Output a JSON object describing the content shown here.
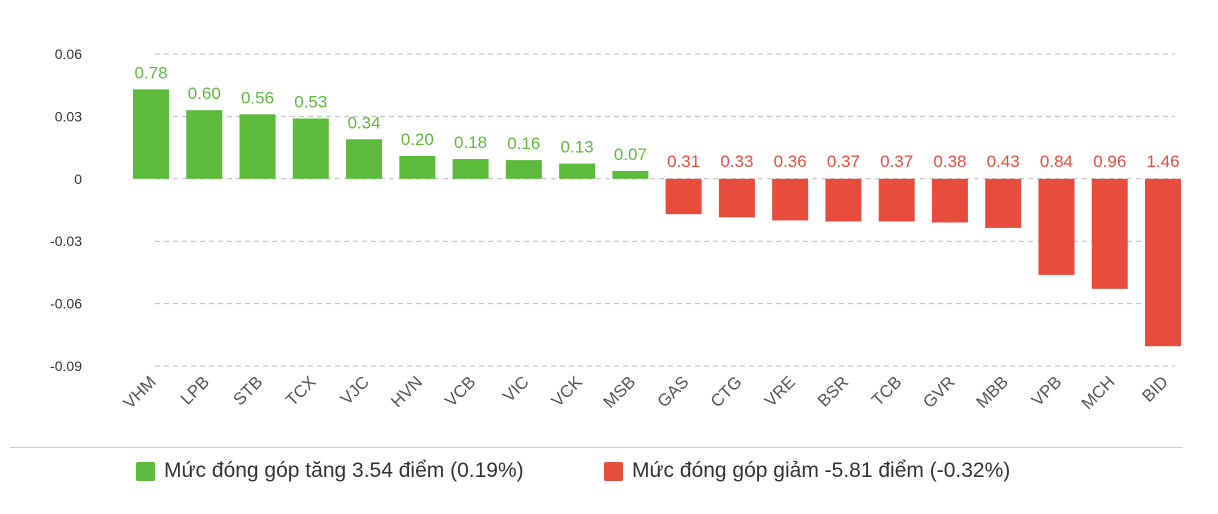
{
  "chart_data": {
    "type": "bar",
    "title": "",
    "xlabel": "",
    "ylabel": "",
    "ylim": [
      -0.09,
      0.06
    ],
    "yticks": [
      0.06,
      0.03,
      0,
      -0.03,
      -0.06,
      -0.09
    ],
    "ytick_labels": [
      "0.06",
      "0.03",
      "0",
      "-0.03",
      "-0.06",
      "-0.09"
    ],
    "grid": true,
    "legend_position": "bottom",
    "categories": [
      "VHM",
      "LPB",
      "STB",
      "TCX",
      "VJC",
      "HVN",
      "VCB",
      "VIC",
      "VCK",
      "MSB",
      "GAS",
      "CTG",
      "VRE",
      "BSR",
      "TCB",
      "GVR",
      "MBB",
      "VPB",
      "MCH",
      "BID"
    ],
    "values": [
      0.043,
      0.033,
      0.031,
      0.029,
      0.019,
      0.011,
      0.0095,
      0.009,
      0.0073,
      0.0038,
      -0.017,
      -0.0185,
      -0.02,
      -0.0205,
      -0.0205,
      -0.021,
      -0.0236,
      -0.0462,
      -0.0529,
      -0.0805
    ],
    "data_labels": [
      "0.78",
      "0.60",
      "0.56",
      "0.53",
      "0.34",
      "0.20",
      "0.18",
      "0.16",
      "0.13",
      "0.07",
      "0.31",
      "0.33",
      "0.36",
      "0.37",
      "0.37",
      "0.38",
      "0.43",
      "0.84",
      "0.96",
      "1.46"
    ],
    "colors": {
      "positive": "#5dbb3c",
      "negative": "#e84c3d"
    },
    "legend": [
      {
        "label": "Mức đóng góp tăng 3.54 điểm (0.19%)",
        "color": "#5dbb3c"
      },
      {
        "label": "Mức đóng góp giảm -5.81 điểm (-0.32%)",
        "color": "#e84c3d"
      }
    ]
  }
}
